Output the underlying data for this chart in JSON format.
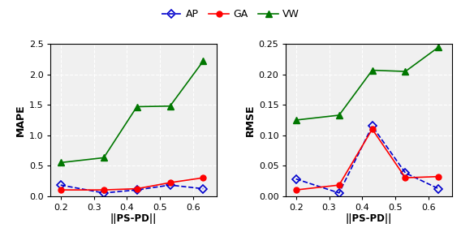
{
  "x": [
    0.2,
    0.33,
    0.43,
    0.53,
    0.63
  ],
  "mape_AP": [
    0.18,
    0.05,
    0.1,
    0.18,
    0.12
  ],
  "mape_GA": [
    0.1,
    0.1,
    0.12,
    0.22,
    0.3
  ],
  "mape_VW": [
    0.55,
    0.63,
    1.47,
    1.48,
    2.22
  ],
  "rmse_AP": [
    0.028,
    0.005,
    0.115,
    0.038,
    0.012
  ],
  "rmse_GA": [
    0.01,
    0.018,
    0.11,
    0.03,
    0.032
  ],
  "rmse_VW": [
    0.125,
    0.133,
    0.207,
    0.205,
    0.245
  ],
  "color_AP": "#0000cc",
  "color_GA": "#ff0000",
  "color_VW": "#007700",
  "xlabel": "||PS-PD||",
  "ylabel_left": "MAPE",
  "ylabel_right": "RMSE",
  "ylim_left": [
    0,
    2.5
  ],
  "ylim_right": [
    0,
    0.25
  ],
  "yticks_left": [
    0.0,
    0.5,
    1.0,
    1.5,
    2.0,
    2.5
  ],
  "yticks_right": [
    0.0,
    0.05,
    0.1,
    0.15,
    0.2,
    0.25
  ],
  "xticks": [
    0.2,
    0.3,
    0.4,
    0.5,
    0.6
  ],
  "xticklabels": [
    "0.2",
    "0.3",
    "0.4",
    "0.5",
    "0.6"
  ],
  "legend_labels": [
    "AP",
    "GA",
    "VW"
  ],
  "xlim": [
    0.17,
    0.67
  ]
}
